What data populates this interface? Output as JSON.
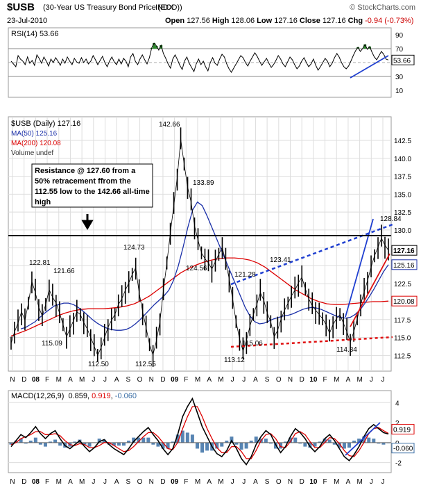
{
  "header": {
    "symbol": "$USB",
    "description": "(30-Year US Treasury Bond Price (EOD))",
    "exchange": "INDX",
    "brand": "© StockCharts.com",
    "date": "23-Jul-2010",
    "open_label": "Open",
    "open": "127.56",
    "high_label": "High",
    "high": "128.06",
    "low_label": "Low",
    "low": "127.16",
    "close_label": "Close",
    "close": "127.16",
    "chg_label": "Chg",
    "chg": "-0.94 (-0.73%)"
  },
  "colors": {
    "price": "#000000",
    "ma50": "#1a2fa8",
    "ma200": "#dd0000",
    "rsi_fill": "#2e8b2e",
    "macd": "#000000",
    "signal": "#dd0000",
    "histogram": "#3a6ea5",
    "trendline_blue": "#1f3fd0",
    "trendline_red": "#e01010",
    "grid": "#dddddd"
  },
  "chart_data": [
    {
      "type": "line",
      "panel": "rsi",
      "label": "RSI(14) 53.66",
      "last_value": "53.66",
      "yticks": [
        10,
        30,
        70,
        90
      ],
      "ylim": [
        0,
        100
      ],
      "reference_levels": [
        30,
        70
      ],
      "series": [
        {
          "name": "RSI(14)",
          "values": [
            52,
            48,
            44,
            60,
            55,
            52,
            47,
            58,
            49,
            53,
            46,
            61,
            56,
            49,
            58,
            52,
            45,
            55,
            50,
            57,
            52,
            46,
            55,
            49,
            58,
            52,
            47,
            56,
            51,
            49,
            57,
            50,
            55,
            48,
            52,
            60,
            54,
            47,
            53,
            59,
            50,
            44,
            52,
            58,
            51,
            47,
            55,
            48,
            56,
            52,
            44,
            58,
            63,
            52,
            47,
            55,
            61,
            54,
            48,
            57,
            71,
            78,
            74,
            68,
            75,
            63,
            56,
            48,
            42,
            55,
            61,
            54,
            46,
            40,
            52,
            58,
            49,
            43,
            37,
            48,
            55,
            47,
            52,
            44,
            38,
            50,
            57,
            49,
            46,
            55,
            62,
            58,
            48,
            41,
            36,
            42,
            48,
            54,
            60,
            57,
            50,
            45,
            52,
            58,
            64,
            59,
            52,
            46,
            51,
            56,
            49,
            43,
            47,
            53,
            60,
            55,
            48,
            44,
            51,
            58,
            54,
            47,
            41,
            45,
            52,
            57,
            50,
            44,
            48,
            55,
            46,
            39,
            44,
            50,
            56,
            52,
            44,
            49,
            57,
            63,
            58,
            50,
            44,
            41,
            45,
            52,
            60,
            67,
            72,
            66,
            70,
            76,
            69,
            73,
            65,
            58,
            54,
            60,
            66,
            62,
            55,
            53.66
          ]
        }
      ]
    },
    {
      "type": "line",
      "panel": "price",
      "label": "$USB (Daily) 127.16",
      "last_value": "127.16",
      "x_labels": [
        "N",
        "D",
        "08",
        "F",
        "M",
        "A",
        "M",
        "J",
        "J",
        "A",
        "S",
        "O",
        "N",
        "D",
        "09",
        "F",
        "M",
        "A",
        "M",
        "J",
        "J",
        "A",
        "S",
        "O",
        "N",
        "D",
        "10",
        "F",
        "M",
        "A",
        "M",
        "J",
        "J"
      ],
      "yticks": [
        112.5,
        115.0,
        117.5,
        120.0,
        122.5,
        125.0,
        127.5,
        130.0,
        132.5,
        135.0,
        137.5,
        140.0,
        142.5
      ],
      "ylim": [
        110.3,
        145.8
      ],
      "series": [
        {
          "name": "$USB (Daily)",
          "values": [
            114.2,
            115.8,
            117.0,
            118.6,
            117.4,
            119.8,
            122.81,
            121.3,
            119.2,
            118.0,
            119.6,
            121.66,
            120.6,
            119.8,
            118.4,
            116.8,
            115.09,
            116.2,
            117.3,
            118.6,
            118.2,
            117.1,
            116.2,
            115.0,
            113.8,
            112.5,
            113.6,
            115.0,
            116.4,
            117.4,
            118.2,
            119.6,
            120.4,
            121.6,
            122.6,
            123.8,
            124.73,
            121.2,
            118.6,
            116.4,
            114.0,
            112.55,
            114.6,
            117.2,
            121.6,
            125.4,
            129.6,
            133.4,
            137.4,
            142.66,
            139.2,
            136.0,
            133.89,
            130.6,
            128.6,
            126.8,
            126.0,
            125.4,
            124.56,
            125.6,
            126.6,
            127.6,
            125.6,
            123.2,
            120.4,
            117.2,
            114.8,
            113.12,
            114.6,
            116.6,
            118.2,
            119.6,
            121.28,
            120.2,
            118.4,
            117.2,
            115.06,
            116.0,
            117.6,
            118.8,
            119.8,
            120.8,
            121.6,
            122.6,
            123.41,
            121.8,
            120.4,
            119.4,
            118.8,
            118.2,
            117.6,
            116.8,
            115.6,
            116.8,
            117.6,
            118.2,
            117.0,
            115.8,
            114.34,
            115.8,
            117.6,
            119.6,
            121.4,
            123.0,
            124.8,
            126.4,
            127.6,
            128.84,
            127.9,
            127.16
          ]
        },
        {
          "name": "MA(50)",
          "label": "MA(50) 125.16",
          "values": [
            116.2,
            116.4,
            116.8,
            117.2,
            117.8,
            118.4,
            118.9,
            119.4,
            119.6,
            119.8,
            119.8,
            119.6,
            119.2,
            118.7,
            118.1,
            117.5,
            117.0,
            116.6,
            116.3,
            116.1,
            116.0,
            116.0,
            116.1,
            116.4,
            116.9,
            117.5,
            118.2,
            118.9,
            119.6,
            120.2,
            120.8,
            121.6,
            123.0,
            125.0,
            127.6,
            130.4,
            132.8,
            133.9,
            133.4,
            132.0,
            130.4,
            128.8,
            127.2,
            125.6,
            124.0,
            122.4,
            120.8,
            119.2,
            118.0,
            117.2,
            116.9,
            117.0,
            117.3,
            117.6,
            117.8,
            118.0,
            118.1,
            118.3,
            118.6,
            118.9,
            119.1,
            119.2,
            119.1,
            118.9,
            118.6,
            118.3,
            118.0,
            117.8,
            117.7,
            117.8,
            118.2,
            118.8,
            119.7,
            120.7,
            121.8,
            123.0,
            124.2,
            125.16
          ]
        },
        {
          "name": "MA(200)",
          "label": "MA(200) 120.08",
          "values": [
            115.2,
            115.6,
            116.0,
            116.5,
            117.0,
            117.5,
            118.0,
            118.4,
            118.7,
            118.9,
            119.0,
            119.0,
            119.0,
            119.1,
            119.2,
            119.4,
            119.7,
            120.2,
            120.8,
            121.6,
            122.4,
            123.2,
            124.0,
            124.6,
            125.1,
            125.5,
            125.8,
            126.0,
            126.1,
            126.1,
            126.0,
            125.8,
            125.4,
            124.8,
            124.0,
            123.2,
            122.4,
            121.6,
            121.0,
            120.4,
            120.0,
            119.7,
            119.6,
            119.6,
            119.7,
            119.8,
            119.9,
            120.0,
            120.0,
            120.08
          ]
        },
        {
          "name": "Volume",
          "label": "Volume undef",
          "values": []
        }
      ],
      "annotations": [
        {
          "text": "Resistance @ 127.60 from a 50% retracement ffrom the 112.55 low to the 142.66 all-time high"
        },
        {
          "text": "142.66"
        },
        {
          "text": "133.89"
        },
        {
          "text": "128.84"
        },
        {
          "text": "124.73"
        },
        {
          "text": "124.56"
        },
        {
          "text": "123.41"
        },
        {
          "text": "122.81"
        },
        {
          "text": "121.66"
        },
        {
          "text": "121.28"
        },
        {
          "text": "115.09"
        },
        {
          "text": "115.06"
        },
        {
          "text": "114.34"
        },
        {
          "text": "113.12"
        },
        {
          "text": "112.55"
        },
        {
          "text": "112.50"
        }
      ],
      "price_tags": [
        "127.16",
        "125.16",
        "120.08"
      ],
      "horizontal_line": 127.6
    },
    {
      "type": "line",
      "panel": "macd",
      "label_name": "MACD(12,26,9)",
      "label_macd": "0.859",
      "label_signal": "0.919",
      "label_hist": "-0.060",
      "yticks": [
        -2,
        0,
        2,
        4
      ],
      "ylim": [
        -3,
        5.2
      ],
      "series": [
        {
          "name": "MACD",
          "values": [
            -0.4,
            0.2,
            0.8,
            0.5,
            1.0,
            1.6,
            0.9,
            0.4,
            0.9,
            1.2,
            0.4,
            -0.3,
            -0.6,
            -0.2,
            0.2,
            -0.4,
            -0.9,
            -0.5,
            0.1,
            0.3,
            -0.2,
            -0.6,
            -0.9,
            -1.2,
            -0.6,
            0.1,
            0.6,
            1.1,
            1.5,
            0.8,
            0.2,
            -0.6,
            -1.2,
            -0.6,
            0.8,
            2.6,
            3.6,
            4.4,
            3.0,
            1.6,
            0.6,
            -0.4,
            -1.1,
            -1.4,
            -0.8,
            0.2,
            -0.6,
            -1.6,
            -2.2,
            -1.4,
            -0.2,
            0.6,
            1.2,
            0.8,
            -0.2,
            -1.0,
            -0.4,
            0.6,
            1.4,
            1.0,
            0.4,
            -0.4,
            -0.9,
            -0.4,
            0.4,
            0.8,
            0.2,
            -0.6,
            -1.4,
            -1.8,
            -1.2,
            -0.4,
            0.6,
            1.4,
            1.8,
            1.4,
            1.0,
            0.859
          ]
        },
        {
          "name": "Signal",
          "values": [
            -0.2,
            0.0,
            0.4,
            0.6,
            0.8,
            1.1,
            1.1,
            0.8,
            0.8,
            0.9,
            0.7,
            0.2,
            -0.2,
            -0.3,
            -0.1,
            -0.2,
            -0.5,
            -0.5,
            -0.3,
            0.0,
            0.0,
            -0.3,
            -0.6,
            -0.9,
            -0.8,
            -0.4,
            0.1,
            0.6,
            1.0,
            1.0,
            0.6,
            0.0,
            -0.6,
            -0.7,
            0.0,
            1.4,
            2.6,
            3.6,
            3.6,
            2.6,
            1.4,
            0.4,
            -0.5,
            -1.0,
            -1.0,
            -0.4,
            -0.4,
            -0.9,
            -1.6,
            -1.6,
            -0.8,
            0.2,
            0.8,
            0.9,
            0.4,
            -0.4,
            -0.5,
            0.1,
            0.9,
            1.1,
            0.8,
            0.1,
            -0.5,
            -0.5,
            0.0,
            0.5,
            0.4,
            -0.1,
            -0.8,
            -1.3,
            -1.4,
            -0.8,
            0.0,
            0.9,
            1.4,
            1.5,
            1.2,
            0.919
          ]
        }
      ]
    }
  ]
}
